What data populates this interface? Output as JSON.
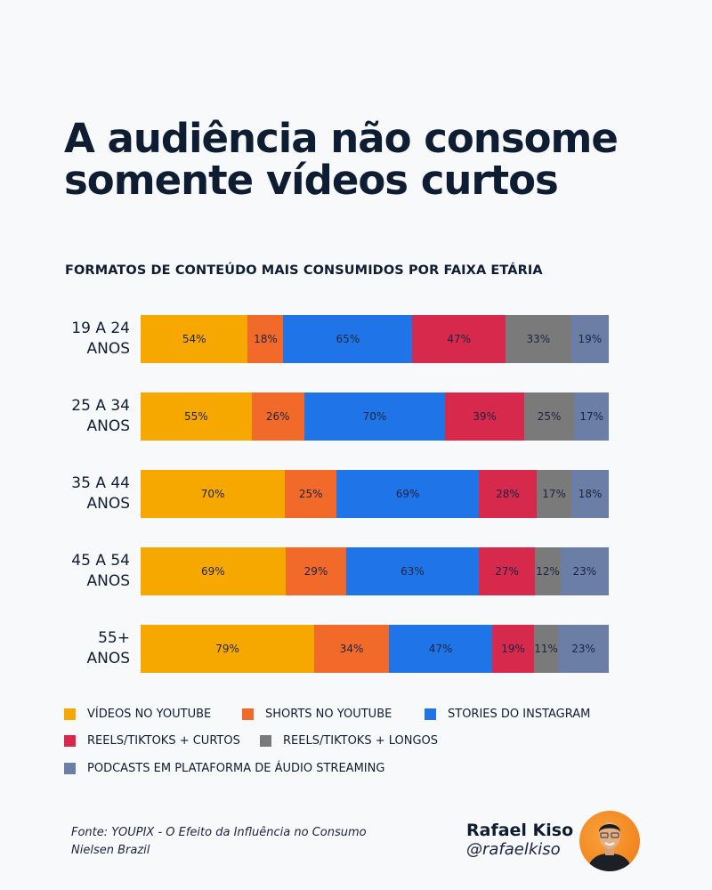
{
  "title": "A audiência não consome somente vídeos curtos",
  "subtitle": "FORMATOS DE CONTEÚDO MAIS CONSUMIDOS POR FAIXA ETÁRIA",
  "chart_data": {
    "type": "bar",
    "orientation": "horizontal",
    "stacked": true,
    "normalized": true,
    "categories": [
      [
        "19 A 24",
        "ANOS"
      ],
      [
        "25 A 34",
        "ANOS"
      ],
      [
        "35 A 44",
        "ANOS"
      ],
      [
        "45 A 54",
        "ANOS"
      ],
      [
        "55+",
        "ANOS"
      ]
    ],
    "series": [
      {
        "name": "VÍDEOS NO YOUTUBE",
        "color": "#f7a800",
        "values": [
          54,
          55,
          70,
          69,
          79
        ]
      },
      {
        "name": "SHORTS NO YOUTUBE",
        "color": "#f26a2a",
        "values": [
          18,
          26,
          25,
          29,
          34
        ]
      },
      {
        "name": "STORIES DO INSTAGRAM",
        "color": "#1f75e8",
        "values": [
          65,
          70,
          69,
          63,
          47
        ]
      },
      {
        "name": "REELS/TIKTOKS + CURTOS",
        "color": "#d6294c",
        "values": [
          47,
          39,
          28,
          27,
          19
        ]
      },
      {
        "name": "REELS/TIKTOKS + LONGOS",
        "color": "#7a7a7a",
        "values": [
          33,
          25,
          17,
          12,
          11
        ]
      },
      {
        "name": "PODCASTS EM PLATAFORMA DE ÁUDIO STREAMING",
        "color": "#6a7ea6",
        "values": [
          19,
          17,
          18,
          23,
          23
        ]
      }
    ],
    "value_suffix": "%",
    "legend": "bottom",
    "grid": false
  },
  "source": {
    "line1": "Fonte: YOUPIX - O Efeito da Influência no Consumo",
    "line2": "Nielsen Brazil"
  },
  "author": {
    "name": "Rafael Kiso",
    "handle": "@rafaelkiso"
  }
}
